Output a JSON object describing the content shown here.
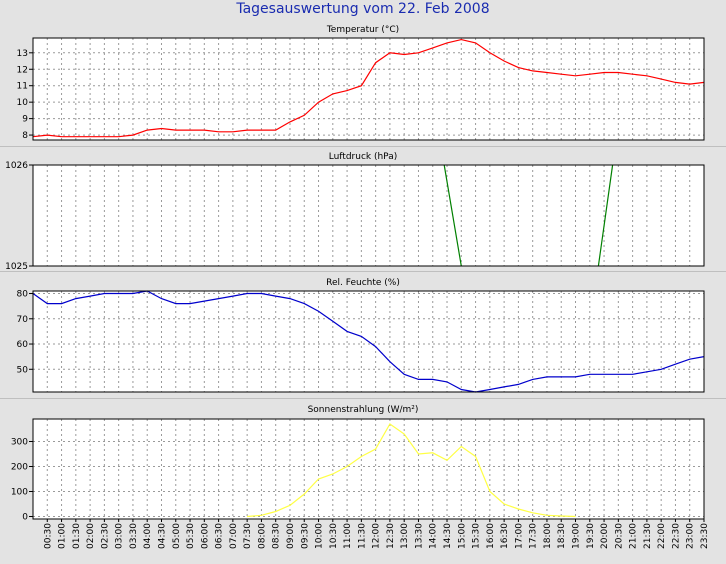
{
  "title": "Tagesauswertung vom 22. Feb 2008",
  "x_labels": [
    "00:30",
    "01:00",
    "01:30",
    "02:00",
    "02:30",
    "03:00",
    "03:30",
    "04:00",
    "04:30",
    "05:00",
    "05:30",
    "06:00",
    "06:30",
    "07:00",
    "07:30",
    "08:00",
    "08:30",
    "09:00",
    "09:30",
    "10:00",
    "10:30",
    "11:00",
    "11:30",
    "12:00",
    "12:30",
    "13:00",
    "13:30",
    "14:00",
    "14:30",
    "15:00",
    "15:30",
    "16:00",
    "16:30",
    "17:00",
    "17:30",
    "18:00",
    "18:30",
    "19:00",
    "19:30",
    "20:00",
    "20:30",
    "21:00",
    "21:30",
    "22:00",
    "22:30",
    "23:00",
    "23:30"
  ],
  "chart_data": [
    {
      "type": "line",
      "title": "Temperatur (°C)",
      "color": "#ff0000",
      "ylim": [
        7.7,
        13.9
      ],
      "yticks": [
        8,
        9,
        10,
        11,
        12,
        13
      ],
      "x": [
        0.0,
        0.5,
        1.0,
        1.5,
        2.0,
        2.5,
        3.0,
        3.5,
        4.0,
        4.5,
        5.0,
        5.5,
        6.0,
        6.5,
        7.0,
        7.5,
        8.0,
        8.5,
        9.0,
        9.5,
        10.0,
        10.5,
        11.0,
        11.5,
        12.0,
        12.5,
        13.0,
        13.5,
        14.0,
        14.5,
        15.0,
        15.5,
        16.0,
        16.5,
        17.0,
        17.5,
        18.0,
        18.5,
        19.0,
        19.5,
        20.0,
        20.5,
        21.0,
        21.5,
        22.0,
        22.5,
        23.0,
        23.5
      ],
      "values": [
        7.9,
        8.0,
        7.9,
        7.9,
        7.9,
        7.9,
        7.9,
        8.0,
        8.3,
        8.4,
        8.3,
        8.3,
        8.3,
        8.2,
        8.2,
        8.3,
        8.3,
        8.3,
        8.8,
        9.2,
        10.0,
        10.5,
        10.7,
        11.0,
        12.4,
        13.0,
        12.9,
        13.0,
        13.3,
        13.6,
        13.8,
        13.6,
        13.0,
        12.5,
        12.1,
        11.9,
        11.8,
        11.7,
        11.6,
        11.7,
        11.8,
        11.8,
        11.7,
        11.6,
        11.4,
        11.2,
        11.1,
        11.2
      ]
    },
    {
      "type": "line",
      "title": "Luftdruck (hPa)",
      "color": "#008000",
      "ylim": [
        1025,
        1026
      ],
      "yticks": [
        1025,
        1026
      ],
      "segments": [
        {
          "x": [
            14.4,
            15.0
          ],
          "values": [
            1026,
            1025
          ]
        },
        {
          "x": [
            19.8,
            20.3
          ],
          "values": [
            1025,
            1026
          ]
        }
      ]
    },
    {
      "type": "line",
      "title": "Rel. Feuchte (%)",
      "color": "#0000cc",
      "ylim": [
        41,
        81
      ],
      "yticks": [
        50,
        60,
        70,
        80
      ],
      "x": [
        0.0,
        0.5,
        1.0,
        1.5,
        2.0,
        2.5,
        3.0,
        3.5,
        4.0,
        4.5,
        5.0,
        5.5,
        6.0,
        6.5,
        7.0,
        7.5,
        8.0,
        8.5,
        9.0,
        9.5,
        10.0,
        10.5,
        11.0,
        11.5,
        12.0,
        12.5,
        13.0,
        13.5,
        14.0,
        14.5,
        15.0,
        15.5,
        16.0,
        16.5,
        17.0,
        17.5,
        18.0,
        18.5,
        19.0,
        19.5,
        20.0,
        20.5,
        21.0,
        21.5,
        22.0,
        22.5,
        23.0,
        23.5
      ],
      "values": [
        80,
        76,
        76,
        78,
        79,
        80,
        80,
        80,
        81,
        78,
        76,
        76,
        77,
        78,
        79,
        80,
        80,
        79,
        78,
        76,
        73,
        69,
        65,
        63,
        59,
        53,
        48,
        46,
        46,
        45,
        42,
        41,
        42,
        43,
        44,
        46,
        47,
        47,
        47,
        48,
        48,
        48,
        48,
        49,
        50,
        52,
        54,
        55
      ]
    },
    {
      "type": "line",
      "title": "Sonnenstrahlung (W/m²)",
      "color": "#ffff44",
      "ylim": [
        -10,
        390
      ],
      "yticks": [
        0,
        100,
        200,
        300
      ],
      "x": [
        7.5,
        8.0,
        8.5,
        9.0,
        9.5,
        10.0,
        10.5,
        11.0,
        11.5,
        12.0,
        12.5,
        13.0,
        13.5,
        14.0,
        14.5,
        15.0,
        15.5,
        16.0,
        16.5,
        17.0,
        17.5,
        18.0,
        18.5,
        19.0
      ],
      "values": [
        0,
        5,
        20,
        45,
        90,
        150,
        170,
        200,
        240,
        270,
        370,
        330,
        250,
        255,
        225,
        280,
        240,
        100,
        50,
        30,
        15,
        5,
        2,
        0
      ]
    }
  ]
}
